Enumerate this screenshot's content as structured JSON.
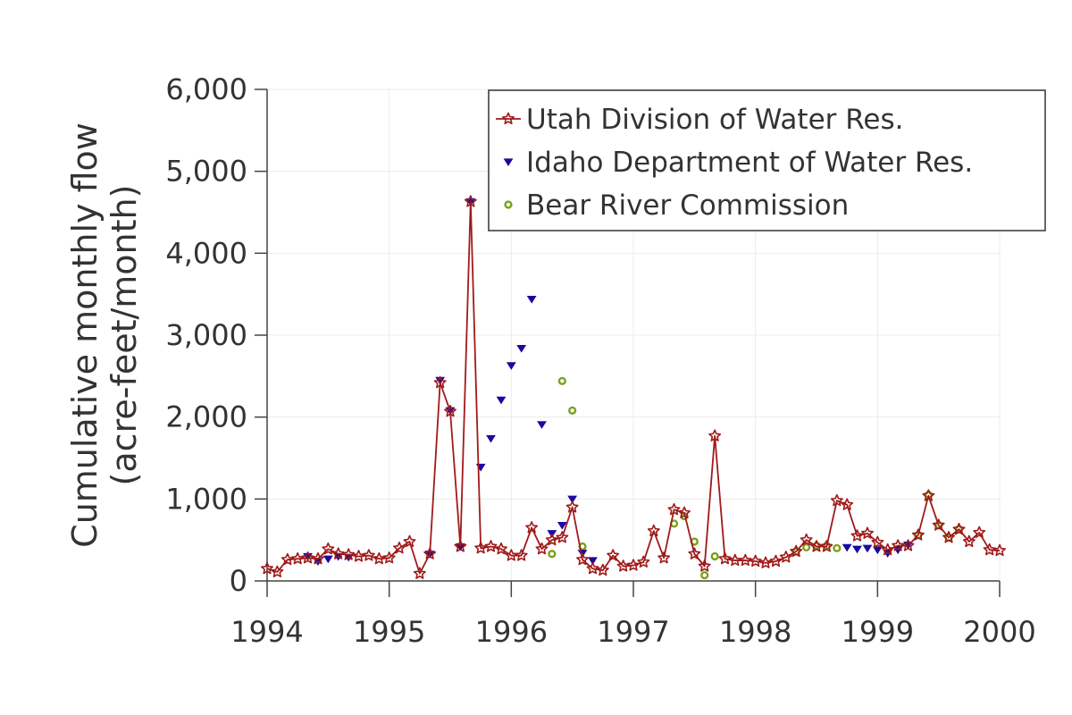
{
  "chart_data": {
    "type": "line",
    "title": "",
    "xlabel": "",
    "ylabel_lines": [
      "Cumulative monthly flow",
      "(acre-feet/month)"
    ],
    "xlim": [
      1994,
      2000
    ],
    "ylim": [
      0,
      6000
    ],
    "x_ticks": [
      1994,
      1995,
      1996,
      1997,
      1998,
      1999,
      2000
    ],
    "x_tick_labels": [
      "1994",
      "1995",
      "1996",
      "1997",
      "1998",
      "1999",
      "2000"
    ],
    "y_ticks": [
      0,
      1000,
      2000,
      3000,
      4000,
      5000,
      6000
    ],
    "y_tick_labels": [
      "0",
      "1,000",
      "2,000",
      "3,000",
      "4,000",
      "5,000",
      "6,000"
    ],
    "grid": true,
    "legend_position": "top-right",
    "series": [
      {
        "name": "Utah Division of Water Res.",
        "color": "#a01a1a",
        "marker": "star",
        "line": true,
        "x": [
          1994.0,
          1994.083,
          1994.167,
          1994.25,
          1994.333,
          1994.417,
          1994.5,
          1994.583,
          1994.667,
          1994.75,
          1994.833,
          1994.917,
          1995.0,
          1995.083,
          1995.167,
          1995.25,
          1995.333,
          1995.417,
          1995.5,
          1995.583,
          1995.667,
          1995.75,
          1995.833,
          1995.917,
          1996.0,
          1996.083,
          1996.167,
          1996.25,
          1996.333,
          1996.417,
          1996.5,
          1996.583,
          1996.667,
          1996.75,
          1996.833,
          1996.917,
          1997.0,
          1997.083,
          1997.167,
          1997.25,
          1997.333,
          1997.417,
          1997.5,
          1997.583,
          1997.667,
          1997.75,
          1997.833,
          1997.917,
          1998.0,
          1998.083,
          1998.167,
          1998.25,
          1998.333,
          1998.417,
          1998.5,
          1998.583,
          1998.667,
          1998.75,
          1998.833,
          1998.917,
          1999.0,
          1999.083,
          1999.167,
          1999.25,
          1999.333,
          1999.417,
          1999.5,
          1999.583,
          1999.667,
          1999.75,
          1999.833,
          1999.917,
          2000.0
        ],
        "y": [
          150,
          110,
          260,
          270,
          280,
          270,
          390,
          330,
          320,
          300,
          310,
          270,
          280,
          400,
          480,
          90,
          330,
          2420,
          2070,
          420,
          4630,
          400,
          420,
          390,
          310,
          310,
          650,
          390,
          500,
          530,
          900,
          260,
          150,
          130,
          310,
          180,
          190,
          230,
          610,
          280,
          870,
          830,
          330,
          180,
          1770,
          270,
          250,
          250,
          240,
          220,
          240,
          290,
          360,
          500,
          420,
          420,
          980,
          930,
          550,
          580,
          470,
          380,
          430,
          430,
          560,
          1040,
          680,
          530,
          630,
          480,
          590,
          380,
          370
        ]
      },
      {
        "name": "Idaho Department of Water Res.",
        "color": "#1a0aa0",
        "marker": "triangle-down",
        "line": false,
        "x": [
          1994.333,
          1994.417,
          1994.5,
          1994.583,
          1994.667,
          1995.333,
          1995.417,
          1995.5,
          1995.583,
          1995.667,
          1995.75,
          1995.833,
          1995.917,
          1996.0,
          1996.083,
          1996.167,
          1996.25,
          1996.333,
          1996.417,
          1996.5,
          1996.583,
          1996.667,
          1998.75,
          1998.833,
          1998.917,
          1999.0,
          1999.083,
          1999.167,
          1999.25
        ],
        "y": [
          300,
          240,
          270,
          300,
          290,
          330,
          2450,
          2080,
          420,
          4630,
          1390,
          1740,
          2210,
          2630,
          2840,
          3440,
          1910,
          580,
          680,
          1000,
          340,
          250,
          410,
          390,
          400,
          380,
          340,
          380,
          440
        ]
      },
      {
        "name": "Bear River Commission",
        "color": "#7aa01a",
        "marker": "circle",
        "line": false,
        "x": [
          1996.333,
          1996.417,
          1996.5,
          1996.583,
          1997.333,
          1997.417,
          1997.5,
          1997.583,
          1997.667,
          1998.333,
          1998.417,
          1998.5,
          1998.583,
          1998.667,
          1999.333,
          1999.417,
          1999.5,
          1999.583,
          1999.667
        ],
        "y": [
          330,
          2440,
          2080,
          420,
          700,
          790,
          480,
          70,
          300,
          360,
          410,
          430,
          430,
          400,
          560,
          1050,
          680,
          530,
          630
        ]
      }
    ]
  }
}
